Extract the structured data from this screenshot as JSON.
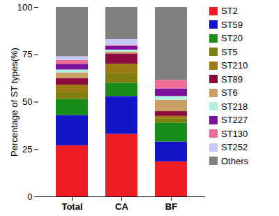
{
  "chart_data": {
    "type": "bar",
    "stacked": true,
    "legend": "right",
    "y_label": "Percentage of ST types(%)",
    "categories": [
      "Total",
      "CA",
      "BF"
    ],
    "ylim": [
      0,
      100
    ],
    "yticks": [
      0,
      25,
      50,
      75,
      100
    ],
    "series": [
      {
        "name": "ST2",
        "color": "#ee1c24",
        "values": [
          27,
          33,
          18.5
        ]
      },
      {
        "name": "ST59",
        "color": "#1414c8",
        "values": [
          16,
          20,
          10.5
        ]
      },
      {
        "name": "ST20",
        "color": "#1a8c1a",
        "values": [
          8.5,
          7,
          10
        ]
      },
      {
        "name": "ST5",
        "color": "#7f7f10",
        "values": [
          3.5,
          5,
          2
        ]
      },
      {
        "name": "ST210",
        "color": "#9c7c12",
        "values": [
          4,
          5,
          1.5
        ]
      },
      {
        "name": "ST89",
        "color": "#8c0c40",
        "values": [
          3.5,
          5.5,
          2.5
        ]
      },
      {
        "name": "ST6",
        "color": "#c8a064",
        "values": [
          3,
          1,
          6
        ]
      },
      {
        "name": "ST218",
        "color": "#b0f0e0",
        "values": [
          1.5,
          1,
          2
        ]
      },
      {
        "name": "ST227",
        "color": "#7a109c",
        "values": [
          3,
          2,
          4
        ]
      },
      {
        "name": "ST130",
        "color": "#f06e96",
        "values": [
          2,
          0.5,
          4.5
        ]
      },
      {
        "name": "ST252",
        "color": "#c8c8f8",
        "values": [
          2,
          3,
          0
        ]
      },
      {
        "name": "Others",
        "color": "#808080",
        "values": [
          26,
          17,
          38.5
        ]
      }
    ]
  }
}
